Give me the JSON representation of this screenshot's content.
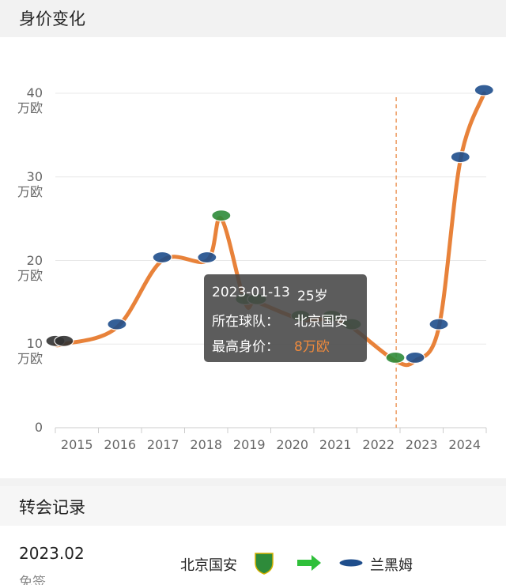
{
  "header": {
    "title": "身价变化"
  },
  "chart_data": {
    "type": "line",
    "x": [
      2014.5,
      2014.7,
      2015.93,
      2016.98,
      2018.02,
      2018.35,
      2018.9,
      2019.18,
      2020.19,
      2020.92,
      2021.38,
      2022.39,
      2022.85,
      2023.4,
      2023.9,
      2024.45
    ],
    "series": [
      {
        "color": "#e8823a",
        "values": [
          10,
          10,
          12,
          20,
          20,
          25,
          15,
          15,
          13,
          13,
          12,
          8,
          8,
          12,
          32,
          40
        ]
      }
    ],
    "point_colors": [
      "#333333",
      "#333333",
      "#1f4e8c",
      "#1f4e8c",
      "#1f4e8c",
      "#2e8b3a",
      "#2e8b3a",
      "#2e8b3a",
      "#2e8b3a",
      "#2e8b3a",
      "#2e8b3a",
      "#2e8b3a",
      "#1f4e8c",
      "#1f4e8c",
      "#1f4e8c",
      "#1f4e8c"
    ],
    "xlim": [
      2014.5,
      2024.5
    ],
    "xticks": [
      2015,
      2016,
      2017,
      2018,
      2019,
      2020,
      2021,
      2022,
      2023,
      2024
    ],
    "ylim": [
      0,
      40
    ],
    "yticks": [
      0,
      {
        "value": 10,
        "label": "10\n万欧"
      },
      {
        "value": 20,
        "label": "20\n万欧"
      },
      {
        "value": 30,
        "label": "30\n万欧"
      },
      {
        "value": 40,
        "label": "40\n万欧"
      }
    ],
    "grid": true,
    "marker_x": 2022.41,
    "tooltip": {
      "date": "2023-01-13",
      "age": "25岁",
      "team_label": "所在球队：",
      "team": "北京国安",
      "value_label": "最高身价：",
      "value": "8万欧",
      "value_color": "#f08a3c"
    }
  },
  "transfers": {
    "title": "转会记录",
    "rows": [
      {
        "date": "2023.02",
        "type": "免签",
        "from": "北京国安",
        "to": "兰黑姆"
      }
    ]
  }
}
